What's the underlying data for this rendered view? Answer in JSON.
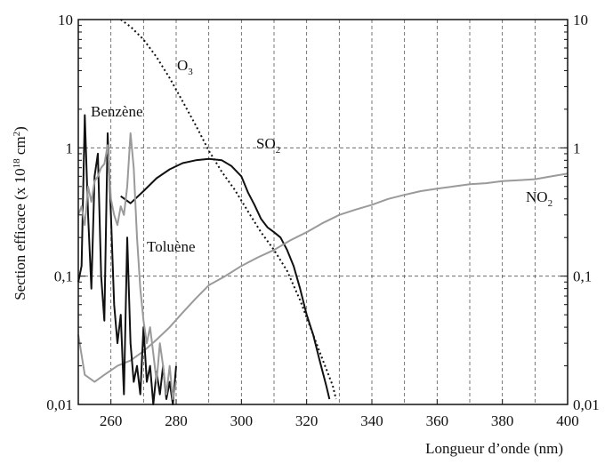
{
  "chart_data": {
    "type": "line",
    "title": "",
    "xlabel": "Longueur d’onde (nm)",
    "ylabel_main": "Section efficace (x 10",
    "ylabel_sup": "18",
    "ylabel_unit": " cm",
    "ylabel_unit_sup": "2",
    "ylabel_close": ")",
    "xlim": [
      250,
      400
    ],
    "ylim": [
      0.01,
      10
    ],
    "y_scale": "log",
    "grid": true,
    "grid_style": "dashed",
    "x_ticks": [
      260,
      280,
      300,
      320,
      340,
      360,
      380,
      400
    ],
    "x_tick_labels": [
      "260",
      "280",
      "300",
      "320",
      "340",
      "360",
      "380",
      "400"
    ],
    "y_ticks": [
      0.01,
      0.1,
      1,
      10
    ],
    "y_tick_labels": [
      "0,01",
      "0,1",
      "1",
      "10"
    ],
    "annotations": {
      "o3_main": "O",
      "o3_sub": "3",
      "so2_main": "SO",
      "so2_sub": "2",
      "no2_main": "NO",
      "no2_sub": "2",
      "benzene": "Benzène",
      "toluene": "Toluène"
    },
    "series": [
      {
        "name": "O3",
        "style": "dotted",
        "color": "#111111",
        "x": [
          263,
          266,
          270,
          274,
          278,
          282,
          286,
          290,
          294,
          298,
          302,
          306,
          310,
          314,
          318,
          322,
          325,
          328,
          329
        ],
        "y": [
          10,
          8.8,
          7.0,
          5.1,
          3.5,
          2.3,
          1.5,
          0.95,
          0.65,
          0.47,
          0.32,
          0.22,
          0.16,
          0.11,
          0.065,
          0.035,
          0.022,
          0.014,
          0.011
        ]
      },
      {
        "name": "SO2",
        "style": "solid",
        "color": "#111111",
        "x": [
          263,
          266,
          270,
          274,
          278,
          282,
          286,
          290,
          294,
          297,
          300,
          302,
          304,
          306,
          308,
          310,
          312,
          314,
          316,
          318,
          320,
          322,
          324,
          326,
          327
        ],
        "y": [
          0.42,
          0.37,
          0.46,
          0.58,
          0.68,
          0.76,
          0.8,
          0.82,
          0.8,
          0.72,
          0.6,
          0.45,
          0.36,
          0.28,
          0.24,
          0.22,
          0.2,
          0.16,
          0.12,
          0.08,
          0.05,
          0.035,
          0.022,
          0.014,
          0.011
        ]
      },
      {
        "name": "NO2",
        "style": "solid",
        "color": "#9a9a9a",
        "x": [
          250,
          252,
          255,
          258,
          262,
          266,
          270,
          274,
          278,
          282,
          286,
          290,
          295,
          300,
          305,
          310,
          315,
          320,
          325,
          330,
          335,
          340,
          345,
          350,
          355,
          360,
          365,
          370,
          375,
          380,
          385,
          390,
          395,
          400
        ],
        "y": [
          0.035,
          0.017,
          0.015,
          0.017,
          0.02,
          0.022,
          0.026,
          0.032,
          0.04,
          0.052,
          0.067,
          0.085,
          0.1,
          0.12,
          0.14,
          0.16,
          0.19,
          0.22,
          0.26,
          0.3,
          0.33,
          0.36,
          0.4,
          0.43,
          0.46,
          0.48,
          0.5,
          0.52,
          0.53,
          0.55,
          0.56,
          0.57,
          0.6,
          0.63
        ]
      },
      {
        "name": "Benzène",
        "style": "solid",
        "color": "#111111",
        "x": [
          250,
          251,
          252,
          253,
          254,
          255,
          256,
          257,
          258,
          259,
          260,
          261,
          262,
          263,
          264,
          265,
          266,
          267,
          268,
          269,
          270,
          271,
          272,
          273,
          274,
          275,
          276,
          277,
          278,
          279,
          280
        ],
        "y": [
          0.09,
          0.12,
          1.8,
          0.3,
          0.08,
          0.6,
          0.9,
          0.1,
          0.045,
          1.3,
          0.3,
          0.06,
          0.03,
          0.05,
          0.012,
          0.2,
          0.03,
          0.015,
          0.02,
          0.012,
          0.04,
          0.015,
          0.02,
          0.01,
          0.018,
          0.012,
          0.02,
          0.011,
          0.015,
          0.01,
          0.02
        ]
      },
      {
        "name": "Toluène",
        "style": "solid",
        "color": "#9a9a9a",
        "x": [
          250,
          251,
          252,
          253,
          254,
          255,
          256,
          257,
          258,
          259,
          260,
          261,
          262,
          263,
          264,
          265,
          266,
          267,
          268,
          269,
          270,
          271,
          272,
          273,
          274,
          275,
          276,
          277,
          278,
          279,
          280
        ],
        "y": [
          0.3,
          0.35,
          0.25,
          0.5,
          0.38,
          0.55,
          0.6,
          0.7,
          0.75,
          1.05,
          0.4,
          0.3,
          0.25,
          0.35,
          0.3,
          0.5,
          1.3,
          0.7,
          0.2,
          0.08,
          0.045,
          0.03,
          0.04,
          0.025,
          0.015,
          0.03,
          0.02,
          0.012,
          0.02,
          0.011,
          0.015
        ]
      }
    ]
  }
}
